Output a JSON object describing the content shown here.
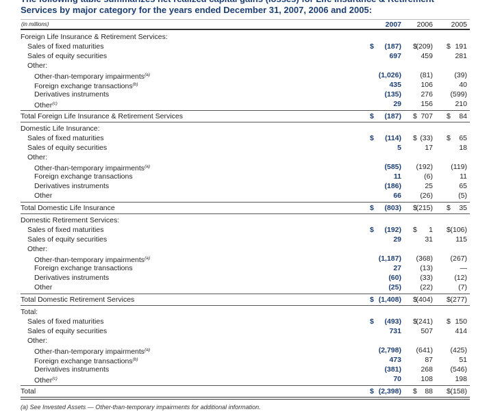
{
  "title": "The following table summarizes net realized capital gains (losses) for Life Insurance & Retirement Services by major category for the years ended December 31, 2007, 2006 and 2005:",
  "table": {
    "unit_note": "(in millions)",
    "years": [
      "2007",
      "2006",
      "2005"
    ],
    "sections": [
      {
        "heading": "Foreign Life Insurance & Retirement Services:",
        "rows": [
          {
            "label": "Sales of fixed maturities",
            "cells": [
              {
                "sym": "$",
                "val": "(187)"
              },
              {
                "sym": "$",
                "val": "(209)"
              },
              {
                "sym": "$",
                "val": "191"
              }
            ]
          },
          {
            "label": "Sales of equity securities",
            "cells": [
              {
                "val": "697"
              },
              {
                "val": "459"
              },
              {
                "val": "281"
              }
            ]
          }
        ],
        "other": {
          "label": "Other:",
          "rows": [
            {
              "label": "Other-than-temporary impairments",
              "note": "(a)",
              "cells": [
                {
                  "val": "(1,026)"
                },
                {
                  "val": "(81)"
                },
                {
                  "val": "(39)"
                }
              ]
            },
            {
              "label": "Foreign exchange transactions",
              "note": "(b)",
              "cells": [
                {
                  "val": "435"
                },
                {
                  "val": "106"
                },
                {
                  "val": "40"
                }
              ]
            },
            {
              "label": "Derivatives instruments",
              "cells": [
                {
                  "val": "(135)"
                },
                {
                  "val": "276"
                },
                {
                  "val": "(599)"
                }
              ]
            },
            {
              "label": "Other",
              "note": "(c)",
              "cells": [
                {
                  "val": "29"
                },
                {
                  "val": "156"
                },
                {
                  "val": "210"
                }
              ]
            }
          ]
        },
        "total": {
          "label": "Total Foreign Life Insurance & Retirement Services",
          "cells": [
            {
              "sym": "$",
              "val": "(187)"
            },
            {
              "sym": "$",
              "val": "707"
            },
            {
              "sym": "$",
              "val": "84"
            }
          ]
        }
      },
      {
        "heading": "Domestic Life Insurance:",
        "rows": [
          {
            "label": "Sales of fixed maturities",
            "cells": [
              {
                "sym": "$",
                "val": "(114)"
              },
              {
                "sym": "$",
                "val": "(33)"
              },
              {
                "sym": "$",
                "val": "65"
              }
            ]
          },
          {
            "label": "Sales of equity securities",
            "cells": [
              {
                "val": "5"
              },
              {
                "val": "17"
              },
              {
                "val": "18"
              }
            ]
          }
        ],
        "other": {
          "label": "Other:",
          "rows": [
            {
              "label": "Other-than-temporary impairments",
              "note": "(a)",
              "cells": [
                {
                  "val": "(585)"
                },
                {
                  "val": "(192)"
                },
                {
                  "val": "(119)"
                }
              ]
            },
            {
              "label": "Foreign exchange transactions",
              "cells": [
                {
                  "val": "11"
                },
                {
                  "val": "(6)"
                },
                {
                  "val": "11"
                }
              ]
            },
            {
              "label": "Derivatives instruments",
              "cells": [
                {
                  "val": "(186)"
                },
                {
                  "val": "25"
                },
                {
                  "val": "65"
                }
              ]
            },
            {
              "label": "Other",
              "cells": [
                {
                  "val": "66"
                },
                {
                  "val": "(26)"
                },
                {
                  "val": "(5)"
                }
              ]
            }
          ]
        },
        "total": {
          "label": "Total Domestic Life Insurance",
          "cells": [
            {
              "sym": "$",
              "val": "(803)"
            },
            {
              "sym": "$",
              "val": "(215)"
            },
            {
              "sym": "$",
              "val": "35"
            }
          ]
        }
      },
      {
        "heading": "Domestic Retirement Services:",
        "rows": [
          {
            "label": "Sales of fixed maturities",
            "cells": [
              {
                "sym": "$",
                "val": "(192)"
              },
              {
                "sym": "$",
                "val": "1"
              },
              {
                "sym": "$",
                "val": "(106)"
              }
            ]
          },
          {
            "label": "Sales of equity securities",
            "cells": [
              {
                "val": "29"
              },
              {
                "val": "31"
              },
              {
                "val": "115"
              }
            ]
          }
        ],
        "other": {
          "label": "Other:",
          "rows": [
            {
              "label": "Other-than-temporary impairments",
              "note": "(a)",
              "cells": [
                {
                  "val": "(1,187)"
                },
                {
                  "val": "(368)"
                },
                {
                  "val": "(267)"
                }
              ]
            },
            {
              "label": "Foreign exchange transactions",
              "cells": [
                {
                  "val": "27"
                },
                {
                  "val": "(13)"
                },
                {
                  "val": "—"
                }
              ]
            },
            {
              "label": "Derivatives instruments",
              "cells": [
                {
                  "val": "(60)"
                },
                {
                  "val": "(33)"
                },
                {
                  "val": "(12)"
                }
              ]
            },
            {
              "label": "Other",
              "cells": [
                {
                  "val": "(25)"
                },
                {
                  "val": "(22)"
                },
                {
                  "val": "(7)"
                }
              ]
            }
          ]
        },
        "total": {
          "label": "Total Domestic Retirement Services",
          "cells": [
            {
              "sym": "$",
              "val": "(1,408)"
            },
            {
              "sym": "$",
              "val": "(404)"
            },
            {
              "sym": "$",
              "val": "(277)"
            }
          ]
        }
      },
      {
        "heading": "Total:",
        "rows": [
          {
            "label": "Sales of fixed maturities",
            "cells": [
              {
                "sym": "$",
                "val": "(493)"
              },
              {
                "sym": "$",
                "val": "(241)"
              },
              {
                "sym": "$",
                "val": "150"
              }
            ]
          },
          {
            "label": "Sales of equity securities",
            "cells": [
              {
                "val": "731"
              },
              {
                "val": "507"
              },
              {
                "val": "414"
              }
            ]
          }
        ],
        "other": {
          "label": "Other:",
          "rows": [
            {
              "label": "Other-than-temporary impairments",
              "note": "(a)",
              "cells": [
                {
                  "val": "(2,798)"
                },
                {
                  "val": "(641)"
                },
                {
                  "val": "(425)"
                }
              ]
            },
            {
              "label": "Foreign exchange transactions",
              "note": "(b)",
              "cells": [
                {
                  "val": "473"
                },
                {
                  "val": "87"
                },
                {
                  "val": "51"
                }
              ]
            },
            {
              "label": "Derivatives instruments",
              "cells": [
                {
                  "val": "(381)"
                },
                {
                  "val": "268"
                },
                {
                  "val": "(546)"
                }
              ]
            },
            {
              "label": "Other",
              "note": "(c)",
              "cells": [
                {
                  "val": "70"
                },
                {
                  "val": "108"
                },
                {
                  "val": "198"
                }
              ]
            }
          ]
        },
        "total": {
          "label": "Total",
          "cells": [
            {
              "sym": "$",
              "val": "(2,398)"
            },
            {
              "sym": "$",
              "val": "88"
            },
            {
              "sym": "$",
              "val": "(158)"
            }
          ]
        }
      }
    ]
  },
  "footnote": "(a) See Invested Assets — Other-than-temporary impairments for additional information."
}
